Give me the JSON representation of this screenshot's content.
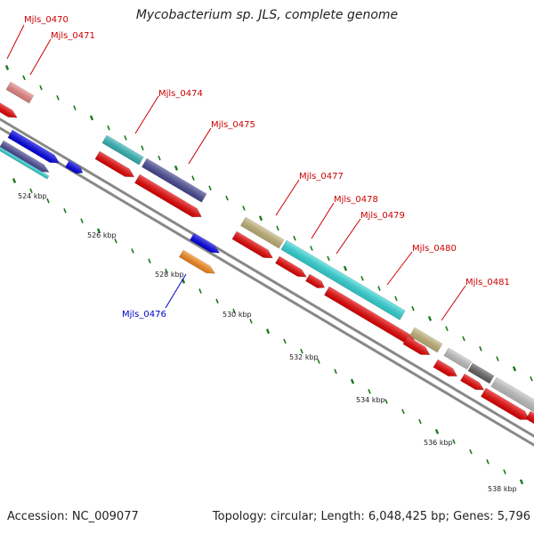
{
  "title": "Mycobacterium sp. JLS, complete genome",
  "footer": {
    "accession": "Accession: NC_009077",
    "summary": "Topology: circular; Length: 6,048,425 bp; Genes: 5,796"
  },
  "tick_labels": [
    "524 kbp",
    "526 kbp",
    "528 kbp",
    "530 kbp",
    "532 kbp",
    "534 kbp",
    "536 kbp",
    "538 kbp"
  ],
  "gene_labels": [
    {
      "name": "Mjls_0470",
      "color": "#cc0000"
    },
    {
      "name": "Mjls_0471",
      "color": "#cc0000"
    },
    {
      "name": "Mjls_0474",
      "color": "#cc0000"
    },
    {
      "name": "Mjls_0475",
      "color": "#cc0000"
    },
    {
      "name": "Mjls_0477",
      "color": "#cc0000"
    },
    {
      "name": "Mjls_0478",
      "color": "#cc0000"
    },
    {
      "name": "Mjls_0479",
      "color": "#cc0000"
    },
    {
      "name": "Mjls_0480",
      "color": "#cc0000"
    },
    {
      "name": "Mjls_0481",
      "color": "#cc0000"
    },
    {
      "name": "Mjls_0476",
      "color": "#0000cc"
    }
  ],
  "colors": {
    "backbone": "#888888",
    "tick": "#1a7a1a",
    "gene_red": "#ee0000",
    "gene_pink": "#f08a8a",
    "gene_cyan": "#33dddd",
    "gene_teal": "#33bbbb",
    "gene_navy": "#4a4a99",
    "gene_blue": "#0000ee",
    "gene_olive": "#c8b87a",
    "gene_orange": "#ff8c1a",
    "gene_lightgray": "#c8c8c8",
    "gene_darkgray": "#666666"
  }
}
